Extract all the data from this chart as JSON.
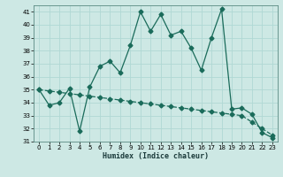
{
  "xlabel": "Humidex (Indice chaleur)",
  "ylabel": "",
  "background_color": "#cde8e4",
  "grid_color": "#b0d8d4",
  "line_color": "#1a6b5a",
  "xlim": [
    -0.5,
    23.5
  ],
  "ylim": [
    31,
    41.5
  ],
  "yticks": [
    31,
    32,
    33,
    34,
    35,
    36,
    37,
    38,
    39,
    40,
    41
  ],
  "xticks": [
    0,
    1,
    2,
    3,
    4,
    5,
    6,
    7,
    8,
    9,
    10,
    11,
    12,
    13,
    14,
    15,
    16,
    17,
    18,
    19,
    20,
    21,
    22,
    23
  ],
  "line1_x": [
    0,
    1,
    2,
    3,
    4,
    5,
    6,
    7,
    8,
    9,
    10,
    11,
    12,
    13,
    14,
    15,
    16,
    17,
    18,
    19,
    20,
    21,
    22,
    23
  ],
  "line1_y": [
    35.0,
    33.8,
    34.0,
    35.1,
    31.8,
    35.2,
    36.8,
    37.2,
    36.3,
    38.4,
    41.0,
    39.5,
    40.8,
    39.2,
    39.5,
    38.2,
    36.5,
    39.0,
    41.2,
    33.5,
    33.6,
    33.1,
    31.7,
    31.3
  ],
  "line2_x": [
    0,
    1,
    2,
    3,
    4,
    5,
    6,
    7,
    8,
    9,
    10,
    11,
    12,
    13,
    14,
    15,
    16,
    17,
    18,
    19,
    20,
    21,
    22,
    23
  ],
  "line2_y": [
    35.0,
    34.9,
    34.8,
    34.7,
    34.6,
    34.5,
    34.4,
    34.3,
    34.2,
    34.1,
    34.0,
    33.9,
    33.8,
    33.7,
    33.6,
    33.5,
    33.4,
    33.3,
    33.2,
    33.1,
    33.0,
    32.5,
    32.0,
    31.5
  ],
  "marker": "D",
  "markersize": 2.5,
  "linewidth": 0.9
}
